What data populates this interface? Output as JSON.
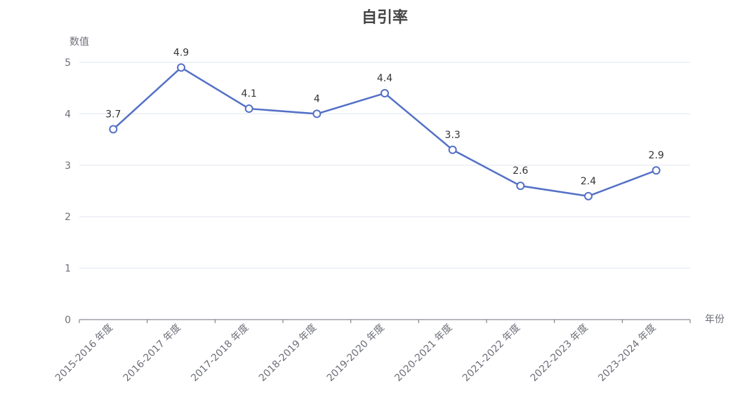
{
  "chart_data": {
    "type": "line",
    "title": "自引率",
    "ylabel": "数值",
    "xlabel": "年份",
    "categories": [
      "2015-2016 年度",
      "2016-2017 年度",
      "2017-2018 年度",
      "2018-2019 年度",
      "2019-2020 年度",
      "2020-2021 年度",
      "2021-2022 年度",
      "2022-2023 年度",
      "2023-2024 年度"
    ],
    "series": [
      {
        "values": [
          3.7,
          4.9,
          4.1,
          4,
          4.4,
          3.3,
          2.6,
          2.4,
          2.9
        ]
      }
    ],
    "data_labels": [
      "3.7",
      "4.9",
      "4.1",
      "4",
      "4.4",
      "3.3",
      "2.6",
      "2.4",
      "2.9"
    ],
    "ylim": [
      0,
      5
    ],
    "yticks": [
      0,
      1,
      2,
      3,
      4,
      5
    ],
    "grid": true,
    "legend": "none",
    "series_color": "#5470c6"
  }
}
